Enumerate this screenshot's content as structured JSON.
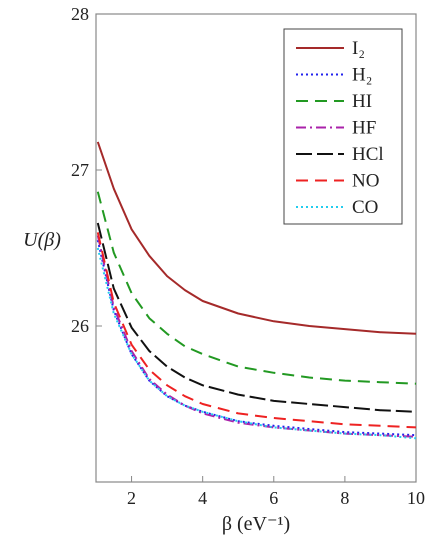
{
  "chart_data": {
    "type": "line",
    "xlabel": "β (eV⁻¹)",
    "ylabel": "U(β)",
    "xlim": [
      1,
      10
    ],
    "ylim": [
      25,
      28
    ],
    "xticks": [
      2,
      4,
      6,
      8,
      10
    ],
    "yticks": [
      26,
      27,
      28
    ],
    "grid": false,
    "legend_position": "top-right",
    "series": [
      {
        "name": "I₂",
        "color": "#a52a2a",
        "dash": "solid",
        "points": [
          [
            1.05,
            27.18
          ],
          [
            1.5,
            26.88
          ],
          [
            2,
            26.62
          ],
          [
            2.5,
            26.45
          ],
          [
            3,
            26.32
          ],
          [
            3.5,
            26.23
          ],
          [
            4,
            26.16
          ],
          [
            5,
            26.08
          ],
          [
            6,
            26.03
          ],
          [
            7,
            26.0
          ],
          [
            8,
            25.98
          ],
          [
            9,
            25.96
          ],
          [
            10,
            25.95
          ]
        ]
      },
      {
        "name": "H₂",
        "color": "#2222ee",
        "dash": "dotted",
        "points": [
          [
            1.05,
            26.55
          ],
          [
            1.5,
            26.1
          ],
          [
            2,
            25.82
          ],
          [
            2.5,
            25.65
          ],
          [
            3,
            25.55
          ],
          [
            3.5,
            25.49
          ],
          [
            4,
            25.45
          ],
          [
            5,
            25.39
          ],
          [
            6,
            25.36
          ],
          [
            7,
            25.34
          ],
          [
            8,
            25.32
          ],
          [
            9,
            25.31
          ],
          [
            10,
            25.3
          ]
        ]
      },
      {
        "name": "HI",
        "color": "#229922",
        "dash": "dashed",
        "points": [
          [
            1.05,
            26.86
          ],
          [
            1.5,
            26.47
          ],
          [
            2,
            26.21
          ],
          [
            2.5,
            26.05
          ],
          [
            3,
            25.95
          ],
          [
            3.5,
            25.87
          ],
          [
            4,
            25.82
          ],
          [
            5,
            25.74
          ],
          [
            6,
            25.7
          ],
          [
            7,
            25.67
          ],
          [
            8,
            25.65
          ],
          [
            9,
            25.64
          ],
          [
            10,
            25.63
          ]
        ]
      },
      {
        "name": "HF",
        "color": "#aa22aa",
        "dash": "dashdot",
        "points": [
          [
            1.05,
            26.58
          ],
          [
            1.5,
            26.12
          ],
          [
            2,
            25.84
          ],
          [
            2.5,
            25.66
          ],
          [
            3,
            25.56
          ],
          [
            3.5,
            25.49
          ],
          [
            4,
            25.44
          ],
          [
            5,
            25.38
          ],
          [
            6,
            25.35
          ],
          [
            7,
            25.33
          ],
          [
            8,
            25.31
          ],
          [
            9,
            25.3
          ],
          [
            10,
            25.29
          ]
        ]
      },
      {
        "name": "HCl",
        "color": "#111111",
        "dash": "longdash",
        "points": [
          [
            1.05,
            26.66
          ],
          [
            1.5,
            26.24
          ],
          [
            2,
            25.99
          ],
          [
            2.5,
            25.84
          ],
          [
            3,
            25.74
          ],
          [
            3.5,
            25.67
          ],
          [
            4,
            25.62
          ],
          [
            5,
            25.56
          ],
          [
            6,
            25.52
          ],
          [
            7,
            25.5
          ],
          [
            8,
            25.48
          ],
          [
            9,
            25.46
          ],
          [
            10,
            25.45
          ]
        ]
      },
      {
        "name": "NO",
        "color": "#ee2222",
        "dash": "dashed",
        "points": [
          [
            1.05,
            26.6
          ],
          [
            1.5,
            26.15
          ],
          [
            2,
            25.88
          ],
          [
            2.5,
            25.72
          ],
          [
            3,
            25.62
          ],
          [
            3.5,
            25.55
          ],
          [
            4,
            25.5
          ],
          [
            5,
            25.44
          ],
          [
            6,
            25.41
          ],
          [
            7,
            25.39
          ],
          [
            8,
            25.37
          ],
          [
            9,
            25.36
          ],
          [
            10,
            25.35
          ]
        ]
      },
      {
        "name": "CO",
        "color": "#22ccee",
        "dash": "dotted",
        "points": [
          [
            1.05,
            26.5
          ],
          [
            1.5,
            26.08
          ],
          [
            2,
            25.82
          ],
          [
            2.5,
            25.65
          ],
          [
            3,
            25.55
          ],
          [
            3.5,
            25.49
          ],
          [
            4,
            25.45
          ],
          [
            5,
            25.39
          ],
          [
            6,
            25.35
          ],
          [
            7,
            25.33
          ],
          [
            8,
            25.31
          ],
          [
            9,
            25.3
          ],
          [
            10,
            25.28
          ]
        ]
      }
    ]
  }
}
